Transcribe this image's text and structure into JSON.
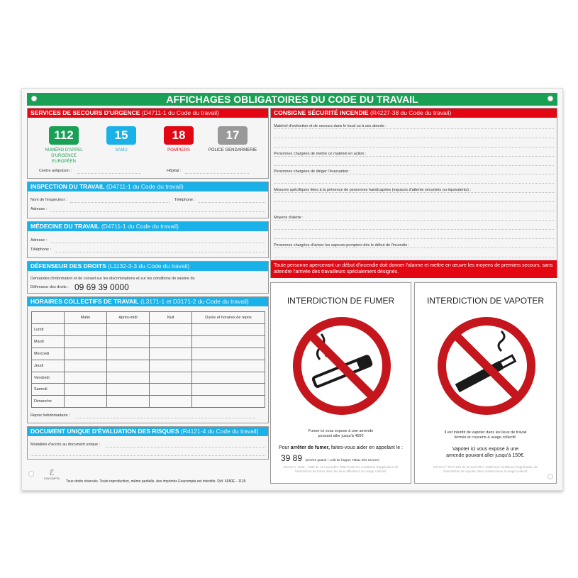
{
  "title": "AFFICHAGES OBLIGATOIRES DU CODE DU TRAVAIL",
  "colors": {
    "green": "#1aa055",
    "red": "#e30613",
    "blue": "#1ab0e8",
    "gray": "#999999"
  },
  "secours": {
    "title": "SERVICES DE SECOURS D'URGENCE",
    "ref": "(D4711-1 du Code du travail)",
    "numbers": [
      {
        "num": "112",
        "label": "NUMÉRO D'APPEL D'URGENCE EUROPÉEN",
        "color": "#1aa055"
      },
      {
        "num": "15",
        "label": "SAMU",
        "color": "#1ab0e8"
      },
      {
        "num": "18",
        "label": "POMPIERS",
        "color": "#e30613"
      },
      {
        "num": "17",
        "label": "POLICE GENDARMERIE",
        "color": "#999999"
      }
    ],
    "antipoison": "Centre antipoison :",
    "hopital": "Hôpital :"
  },
  "inspection": {
    "title": "INSPECTION DU TRAVAIL",
    "ref": "(D4711-1 du Code du travail)",
    "nom": "Nom de l'inspecteur :",
    "tel": "Téléphone :",
    "adresse": "Adresse :"
  },
  "medecine": {
    "title": "MÉDECINE DU TRAVAIL",
    "ref": "(D4711-1 du Code du travail)",
    "adresse": "Adresse :",
    "tel": "Téléphone :"
  },
  "defenseur": {
    "title": "DÉFENSEUR DES DROITS",
    "ref": "(L1132-3-3 du Code du travail)",
    "text": "Demandes d'information et de conseil sur les discriminations et sur les conditions de saisine du",
    "label": "Défenseur des droits :",
    "phone": "09 69 39 0000"
  },
  "horaires": {
    "title": "HORAIRES COLLECTIFS DE TRAVAIL",
    "ref": "(L3171-1 et D3171-2 du Code du travail)",
    "columns": [
      "",
      "Matin",
      "Après-midi",
      "Nuit",
      "Durée et horaires de repos"
    ],
    "days": [
      "Lundi",
      "Mardi",
      "Mercredi",
      "Jeudi",
      "Vendredi",
      "Samedi",
      "Dimanche"
    ],
    "repos": "Repos hebdomadaire :"
  },
  "document": {
    "title": "DOCUMENT UNIQUE D'ÉVALUATION DES RISQUES",
    "ref": "(R4121-4 du Code du travail)",
    "modalites": "Modalités d'accès au document unique :"
  },
  "footer": {
    "brand": "EXACOMPTA",
    "text": "Tous droits réservés. Toute reproduction, même partielle, des imprimés Exacompta est interdite. Réf. 6680E - 1118."
  },
  "incendie": {
    "title": "CONSIGNE SÉCURITÉ INCENDIE",
    "ref": "(R4227-38 du Code du travail)",
    "fields": [
      "Matériel d'extinction et de secours dans le local ou à ses abords :",
      "Personnes chargées de mettre ce matériel en action :",
      "Personnes chargées de diriger l'évacuation :",
      "Mesures spécifiques liées à la présence de personnes handicapées (espaces d'attente sécurisés ou équivalents) :",
      "Moyens d'alerte :",
      "Personnes chargées d'aviser les sapeurs-pompiers dès le début de l'incendie :"
    ],
    "warning": "Toute personne apercevant un début d'incendie doit donner l'alarme et mettre en œuvre les moyens de premiers secours, sans attendre l'arrivée des travailleurs spécialement désignés."
  },
  "fumer": {
    "title": "INTERDICTION DE FUMER",
    "amende": "Fumer ici vous expose à une amende pouvant aller jusqu'à 450€",
    "arret_pre": "Pour ",
    "arret_bold": "arrêter de fumer,",
    "arret_post": " faites-vous aider en appelant le :",
    "phone": "39 89",
    "phone_note": "(service gratuit + coût de l'appel, Tabac Info Service)",
    "decret": "Décret n° 2006 - 1386 du 15 novembre 2006 fixant les conditions d'application de l'interdiction de fumer dans les lieux affectés à un usage collectif."
  },
  "vapoter": {
    "title": "INTERDICTION DE VAPOTER",
    "interdit": "Il est interdit de vapoter dans les lieux de travail fermés et couverts à usage collectif.",
    "amende": "Vapoter ici vous expose à une amende pouvant aller jusqu'à 150€.",
    "decret": "Décret n° 2017-633 du 25 avril 2017 relatif aux conditions d'application de l'interdiction de vapoter dans certains lieux à usage collectif."
  }
}
